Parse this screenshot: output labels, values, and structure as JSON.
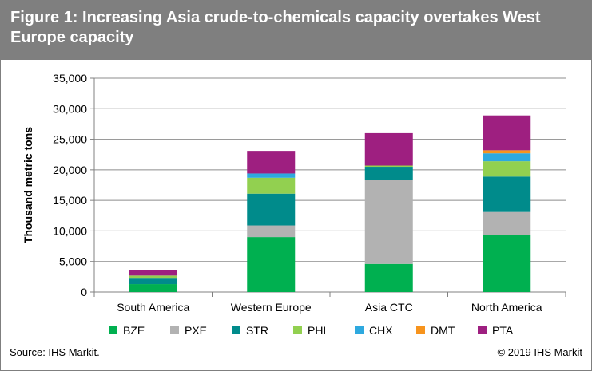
{
  "title": "Figure 1: Increasing Asia crude-to-chemicals capacity overtakes West Europe capacity",
  "source": "Source: IHS Markit.",
  "copyright": "© 2019 IHS Markit",
  "chart_data": {
    "type": "bar",
    "stacked": true,
    "categories": [
      "South America",
      "Western Europe",
      "Asia CTC",
      "North America"
    ],
    "ylabel": "Thousand metric tons",
    "xlabel": "",
    "ylim": [
      0,
      35000
    ],
    "yticks": [
      0,
      5000,
      10000,
      15000,
      20000,
      25000,
      30000,
      35000
    ],
    "ytick_labels": [
      "0",
      "5,000",
      "10,000",
      "15,000",
      "20,000",
      "25,000",
      "30,000",
      "35,000"
    ],
    "grid": true,
    "legend_position": "bottom",
    "series": [
      {
        "name": "BZE",
        "color": "#00b050",
        "values": [
          1300,
          9000,
          4600,
          9400
        ]
      },
      {
        "name": "PXE",
        "color": "#b2b2b2",
        "values": [
          0,
          1900,
          13800,
          3700
        ]
      },
      {
        "name": "STR",
        "color": "#008b8b",
        "values": [
          900,
          5200,
          2100,
          5800
        ]
      },
      {
        "name": "PHL",
        "color": "#92d050",
        "values": [
          500,
          2600,
          200,
          2500
        ]
      },
      {
        "name": "CHX",
        "color": "#2ea9df",
        "values": [
          0,
          700,
          0,
          1300
        ]
      },
      {
        "name": "DMT",
        "color": "#f7941d",
        "values": [
          0,
          0,
          0,
          500
        ]
      },
      {
        "name": "PTA",
        "color": "#9e1f80",
        "values": [
          900,
          3700,
          5300,
          5700
        ]
      }
    ]
  }
}
